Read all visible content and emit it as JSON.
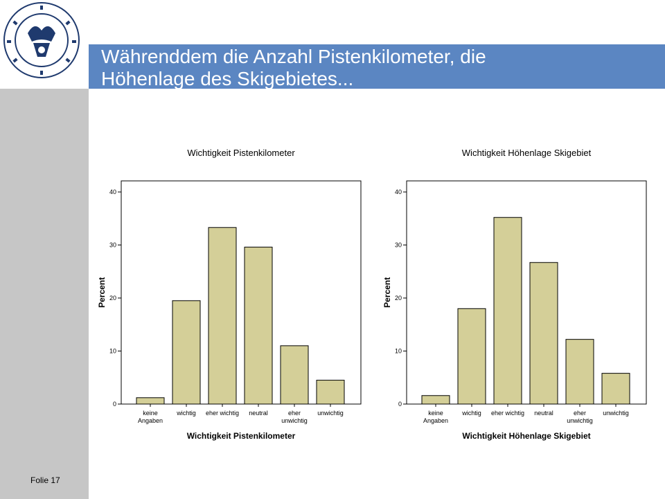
{
  "slide": {
    "title_line1": "Währenddem die Anzahl Pistenkilometer, die",
    "title_line2": "Höhenlage des Skigebietes...",
    "footer": "Folie 17",
    "logo_alt": "UNIVERSITAS STUDIORUM BAUZANENSIS"
  },
  "colors": {
    "sidebar": "#c6c6c6",
    "header": "#5b86c2",
    "header_dark": "#1f3a6e",
    "bar_fill": "#d4cf98"
  },
  "chart_data": [
    {
      "type": "bar",
      "title": "Wichtigkeit Pistenkilometer",
      "xlabel": "Wichtigkeit Pistenkilometer",
      "ylabel": "Percent",
      "categories": [
        "keine Angaben",
        "wichtig",
        "eher wichtig",
        "neutral",
        "eher unwichtig",
        "unwichtig"
      ],
      "category_lines": [
        [
          "keine",
          "Angaben"
        ],
        [
          "wichtig"
        ],
        [
          "eher wichtig"
        ],
        [
          "neutral"
        ],
        [
          "eher",
          "unwichtig"
        ],
        [
          "unwichtig"
        ]
      ],
      "values": [
        1.2,
        19.5,
        33.3,
        29.6,
        11.0,
        4.5
      ],
      "ylim": [
        0,
        40
      ],
      "yticks": [
        0,
        10,
        20,
        30,
        40
      ],
      "grid": false
    },
    {
      "type": "bar",
      "title": "Wichtigkeit Höhenlage Skigebiet",
      "xlabel": "Wichtigkeit Höhenlage Skigebiet",
      "ylabel": "Percent",
      "categories": [
        "keine Angaben",
        "wichtig",
        "eher wichtig",
        "neutral",
        "eher unwichtig",
        "unwichtig"
      ],
      "category_lines": [
        [
          "keine",
          "Angaben"
        ],
        [
          "wichtig"
        ],
        [
          "eher wichtig"
        ],
        [
          "neutral"
        ],
        [
          "eher",
          "unwichtig"
        ],
        [
          "unwichtig"
        ]
      ],
      "values": [
        1.6,
        18.0,
        35.2,
        26.7,
        12.2,
        5.8
      ],
      "ylim": [
        0,
        40
      ],
      "yticks": [
        0,
        10,
        20,
        30,
        40
      ],
      "grid": false
    }
  ]
}
